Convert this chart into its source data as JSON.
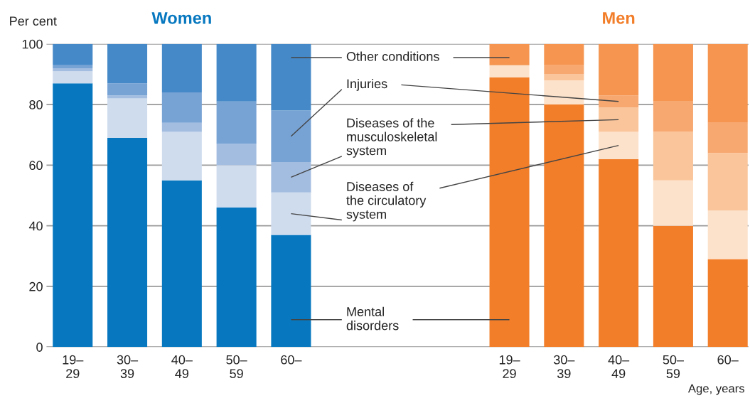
{
  "chart_data": {
    "type": "bar",
    "stacked": true,
    "ylabel": "Per cent",
    "xlabel": "Age, years",
    "annotations": [
      "Women",
      "Men"
    ],
    "categories": [
      "19–\n29",
      "30–\n39",
      "40–\n49",
      "50–\n59",
      "60–",
      null,
      null,
      null,
      "19–\n29",
      "30–\n39",
      "40–\n49",
      "50–\n59",
      "60–"
    ],
    "ylim": [
      0,
      100
    ],
    "yticks": [
      0,
      20,
      40,
      60,
      80,
      100
    ],
    "grid": "y",
    "series": [
      {
        "name": "Mental\ndisorders",
        "values": [
          87,
          69,
          55,
          46,
          37,
          null,
          null,
          null,
          89,
          80,
          62,
          40,
          29
        ],
        "colors": [
          "#0778c0",
          "#0778c0",
          "#0778c0",
          "#0778c0",
          "#0778c0",
          null,
          null,
          null,
          "#f27e2a",
          "#f27e2a",
          "#f27e2a",
          "#f27e2a",
          "#f27e2a"
        ]
      },
      {
        "name": "Diseases of\nthe circulatory\nsystem",
        "values": [
          4,
          13,
          16,
          14,
          14,
          null,
          null,
          null,
          4,
          8,
          9,
          15,
          16
        ],
        "colors": [
          "#cfdcee",
          "#cfdcee",
          "#cfdcee",
          "#cfdcee",
          "#cfdcee",
          null,
          null,
          null,
          "#fde2cb",
          "#fde2cb",
          "#fde2cb",
          "#fde2cb",
          "#fde2cb"
        ]
      },
      {
        "name": "Diseases of the\nmusculoskeletal\nsystem",
        "values": [
          1,
          1,
          3,
          7,
          10,
          null,
          null,
          null,
          0,
          2,
          8,
          16,
          19
        ],
        "colors": [
          "#a3bde0",
          "#a3bde0",
          "#a3bde0",
          "#a3bde0",
          "#a3bde0",
          null,
          null,
          null,
          "#fac59a",
          "#fac59a",
          "#fac59a",
          "#fac59a",
          "#fac59a"
        ]
      },
      {
        "name": "Injuries",
        "values": [
          1,
          4,
          10,
          14,
          17,
          null,
          null,
          null,
          0,
          3,
          4,
          10,
          10
        ],
        "colors": [
          "#77a2d4",
          "#77a2d4",
          "#77a2d4",
          "#77a2d4",
          "#77a2d4",
          null,
          null,
          null,
          "#f7a870",
          "#f7a870",
          "#f7a870",
          "#f7a870",
          "#f7a870"
        ]
      },
      {
        "name": "Other conditions",
        "values": [
          7,
          13,
          16,
          19,
          22,
          null,
          null,
          null,
          7,
          7,
          17,
          19,
          26
        ],
        "colors": [
          "#4689c8",
          "#4689c8",
          "#4689c8",
          "#4689c8",
          "#4689c8",
          null,
          null,
          null,
          "#f59550",
          "#f59550",
          "#f59550",
          "#f59550",
          "#f59550"
        ]
      }
    ]
  }
}
